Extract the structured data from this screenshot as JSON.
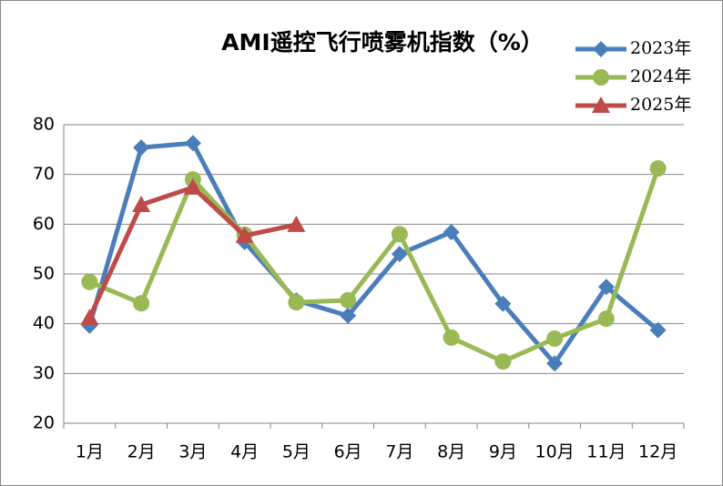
{
  "chart_data": {
    "type": "line",
    "title": "AMI遥控飞行喷雾机指数（%）",
    "categories": [
      "1月",
      "2月",
      "3月",
      "4月",
      "5月",
      "6月",
      "7月",
      "8月",
      "9月",
      "10月",
      "11月",
      "12月"
    ],
    "series": [
      {
        "name": "2023年",
        "color": "#4a7ebb",
        "marker": "diamond",
        "values": [
          39.6,
          75.4,
          76.3,
          56.4,
          44.7,
          41.6,
          54,
          58.4,
          44,
          32,
          47.4,
          38.7
        ]
      },
      {
        "name": "2024年",
        "color": "#98b954",
        "marker": "circle",
        "values": [
          48.4,
          44.1,
          69,
          57.9,
          44.3,
          44.7,
          58,
          37.2,
          32.4,
          37,
          41,
          71.2
        ]
      },
      {
        "name": "2025年",
        "color": "#be4b48",
        "marker": "triangle",
        "values": [
          41.2,
          63.9,
          67.4,
          57.7,
          59.9,
          null,
          null,
          null,
          null,
          null,
          null,
          null
        ]
      }
    ],
    "ylim": [
      20,
      80
    ],
    "yticks": [
      20,
      30,
      40,
      50,
      60,
      70,
      80
    ],
    "grid": true,
    "legend": "top-right"
  }
}
